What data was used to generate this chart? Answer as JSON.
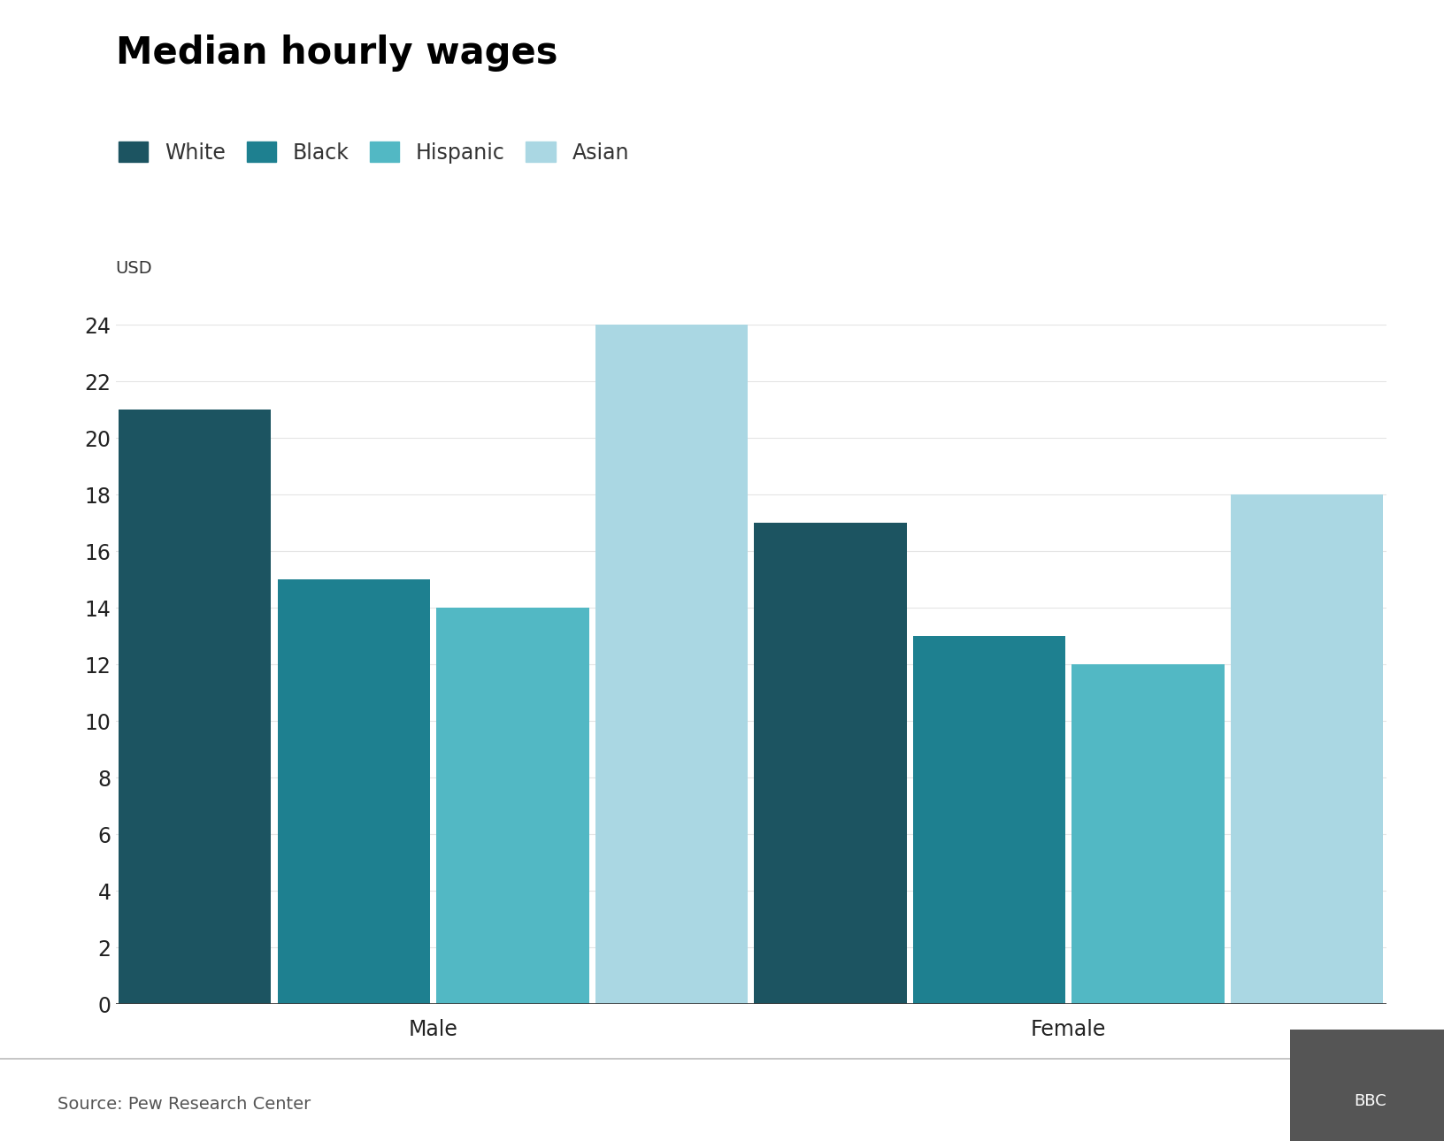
{
  "title": "Median hourly wages",
  "ylabel": "USD",
  "source": "Source: Pew Research Center",
  "groups": [
    "Male",
    "Female"
  ],
  "categories": [
    "White",
    "Black",
    "Hispanic",
    "Asian"
  ],
  "colors": [
    "#1c5461",
    "#1e8090",
    "#52b8c4",
    "#aad7e3"
  ],
  "values": {
    "Male": [
      21.0,
      15.0,
      14.0,
      24.0
    ],
    "Female": [
      17.0,
      13.0,
      12.0,
      18.0
    ]
  },
  "ylim": [
    0,
    25
  ],
  "yticks": [
    0,
    2,
    4,
    6,
    8,
    10,
    12,
    14,
    16,
    18,
    20,
    22,
    24
  ],
  "bar_width": 0.12,
  "group_centers": [
    0.25,
    0.75
  ],
  "background_color": "#ffffff",
  "title_fontsize": 30,
  "legend_fontsize": 17,
  "axis_label_fontsize": 14,
  "tick_fontsize": 17,
  "source_fontsize": 14,
  "bbc_fontsize": 13
}
